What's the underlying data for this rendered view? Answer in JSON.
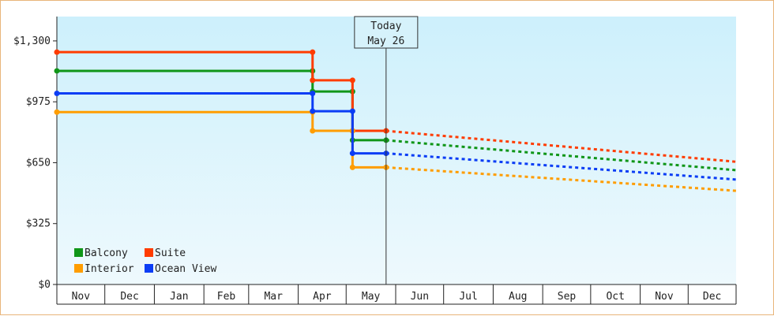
{
  "chart_data": {
    "type": "line",
    "step": true,
    "title": "",
    "xlabel": "",
    "ylabel": "",
    "ylim": [
      0,
      1300
    ],
    "y_ticks": [
      0,
      325,
      650,
      975,
      1300
    ],
    "y_tick_labels": [
      "$0",
      "$325",
      "$650",
      "$975",
      "$1,300"
    ],
    "x_range": [
      "2024-11-01",
      "2025-12-31"
    ],
    "x_tick_labels": [
      "Nov",
      "Dec",
      "Jan",
      "Feb",
      "Mar",
      "Apr",
      "May",
      "Jun",
      "Jul",
      "Aug",
      "Sep",
      "Oct",
      "Nov",
      "Dec"
    ],
    "grid": false,
    "legend_position": "bottom-left",
    "annotation": {
      "line1": "Today",
      "line2": "May 26",
      "date": "2025-05-26"
    },
    "background_gradient": [
      "#cdf0fc",
      "#eef9fd"
    ],
    "series": [
      {
        "name": "Balcony",
        "color": "#109618",
        "points": [
          [
            "2024-11-01",
            1140
          ],
          [
            "2025-04-10",
            1140
          ],
          [
            "2025-04-10",
            1030
          ],
          [
            "2025-05-05",
            1030
          ],
          [
            "2025-05-05",
            770
          ],
          [
            "2025-05-26",
            770
          ]
        ],
        "forecast": [
          [
            "2025-05-26",
            770
          ],
          [
            "2025-12-31",
            610
          ]
        ]
      },
      {
        "name": "Suite",
        "color": "#ff3c00",
        "points": [
          [
            "2024-11-01",
            1240
          ],
          [
            "2025-04-10",
            1240
          ],
          [
            "2025-04-10",
            1090
          ],
          [
            "2025-05-05",
            1090
          ],
          [
            "2025-05-05",
            820
          ],
          [
            "2025-05-26",
            820
          ]
        ],
        "forecast": [
          [
            "2025-05-26",
            820
          ],
          [
            "2025-12-31",
            655
          ]
        ]
      },
      {
        "name": "Interior",
        "color": "#ff9d00",
        "points": [
          [
            "2024-11-01",
            920
          ],
          [
            "2025-04-10",
            920
          ],
          [
            "2025-04-10",
            820
          ],
          [
            "2025-05-05",
            820
          ],
          [
            "2025-05-05",
            625
          ],
          [
            "2025-05-26",
            625
          ]
        ],
        "forecast": [
          [
            "2025-05-26",
            625
          ],
          [
            "2025-12-31",
            500
          ]
        ]
      },
      {
        "name": "Ocean View",
        "color": "#0b3df5",
        "points": [
          [
            "2024-11-01",
            1020
          ],
          [
            "2025-04-10",
            1020
          ],
          [
            "2025-04-10",
            925
          ],
          [
            "2025-05-05",
            925
          ],
          [
            "2025-05-05",
            700
          ],
          [
            "2025-05-26",
            700
          ]
        ],
        "forecast": [
          [
            "2025-05-26",
            700
          ],
          [
            "2025-12-31",
            560
          ]
        ]
      }
    ],
    "legend_order": [
      0,
      1,
      2,
      3
    ]
  }
}
